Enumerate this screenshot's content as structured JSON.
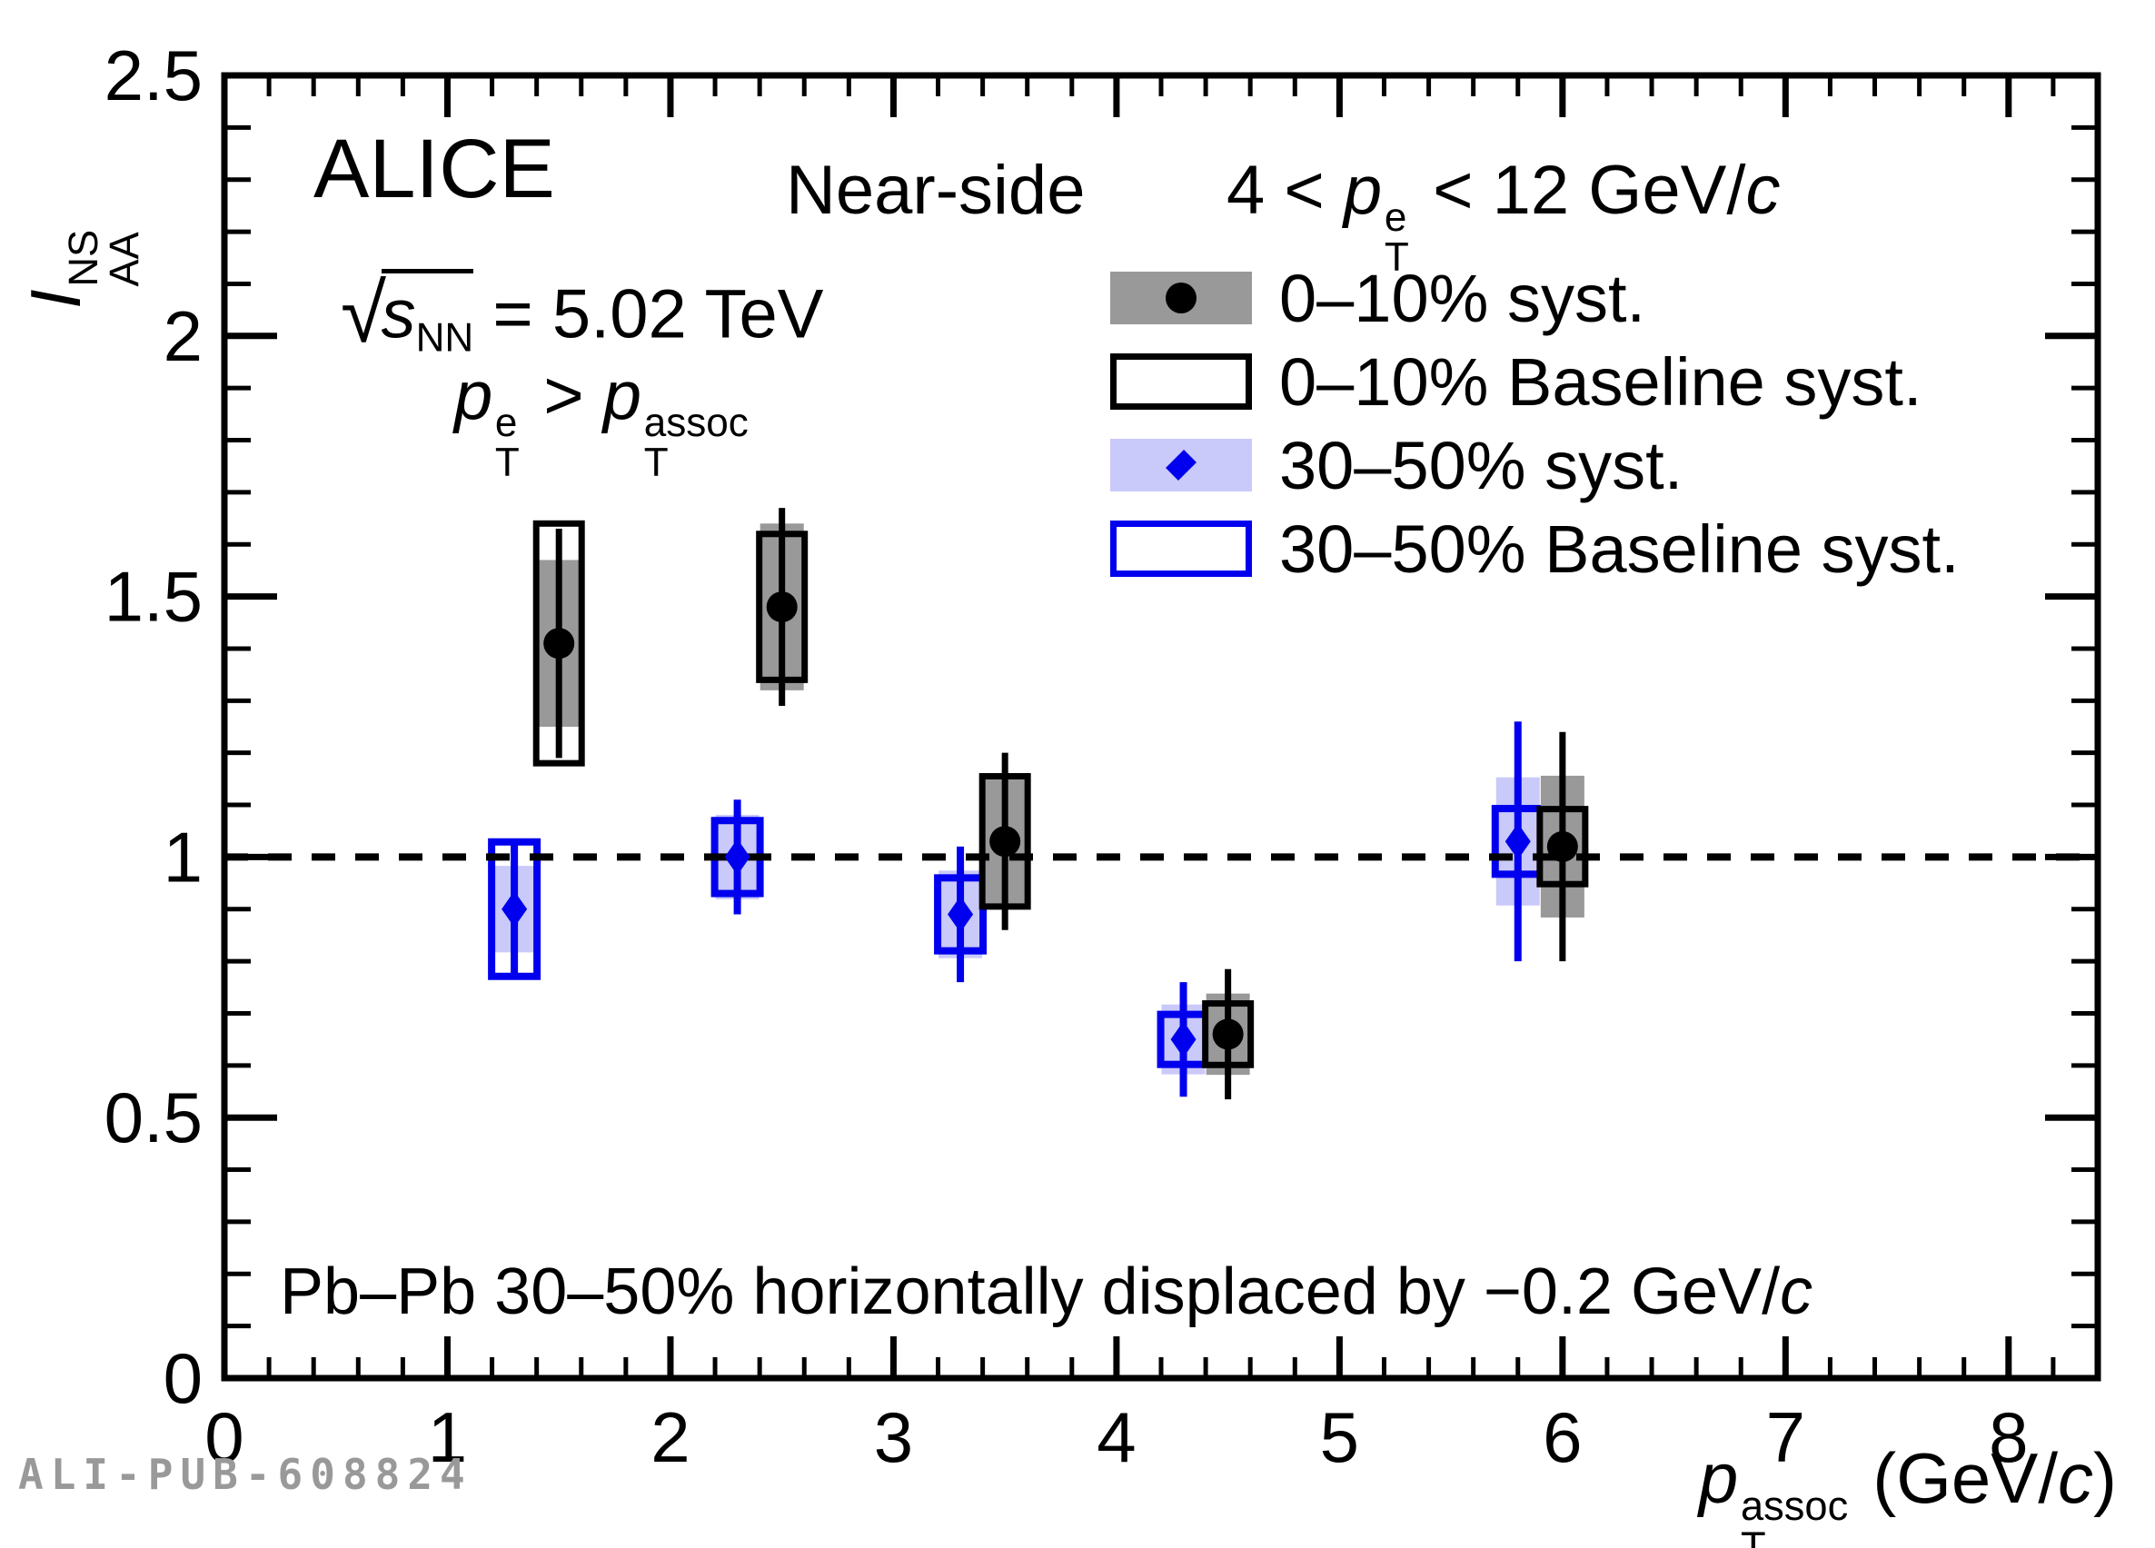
{
  "page": {
    "background": "#ffffff"
  },
  "header": {
    "experiment": "ALICE",
    "region_label": "Near-side",
    "trigger_range": {
      "lead": "4 <  ",
      "p": "p",
      "sup": "e",
      "sub": "T",
      "tail": " < 12 GeV/",
      "c": "c"
    },
    "energy": {
      "radical": "√",
      "s": "s",
      "sub": "NN",
      "tail": " = 5.02 TeV"
    },
    "ordering": {
      "p1": "p",
      "sup1": "e",
      "sub1": "T",
      "rel": " > ",
      "p2": "p",
      "sup2": "assoc",
      "sub2": "T"
    }
  },
  "legend": {
    "items": [
      {
        "label": "0–10% syst.",
        "marker": "circle",
        "marker_color": "#000000",
        "fill": "#999999",
        "border": "none"
      },
      {
        "label": "0–10% Baseline syst.",
        "marker": "none",
        "marker_color": "",
        "fill": "transparent",
        "border": "#000000"
      },
      {
        "label": "30–50% syst.",
        "marker": "diamond",
        "marker_color": "#0000ee",
        "fill": "#c9c9fa",
        "border": "none"
      },
      {
        "label": "30–50% Baseline syst.",
        "marker": "none",
        "marker_color": "",
        "fill": "transparent",
        "border": "#0000ee"
      }
    ]
  },
  "footnote": {
    "main": "Pb–Pb 30–50% horizontally displaced by −0.2 GeV/",
    "c": "c"
  },
  "watermark": "ALI-PUB-608824",
  "axis_titles": {
    "x": {
      "p": "p",
      "sup": "assoc",
      "sub": "T",
      "unit_open": " (GeV/",
      "c": "c",
      "unit_close": ")"
    },
    "y": {
      "symbol": "I",
      "sup": "NS",
      "sub": "AA"
    }
  },
  "chart_data": {
    "type": "scatter",
    "title": "ALICE Near-side I_AA^NS, Pb–Pb, sqrt(s_NN) = 5.02 TeV, 4 < p_T^e < 12 GeV/c",
    "xlabel": "p_T^assoc (GeV/c)",
    "ylabel": "I_AA^NS",
    "x_range": [
      0,
      8.4
    ],
    "y_range": [
      0,
      2.5
    ],
    "x_major_ticks": [
      0,
      1,
      2,
      3,
      4,
      5,
      6,
      7,
      8
    ],
    "x_tick_labels": [
      "0",
      "1",
      "2",
      "3",
      "4",
      "5",
      "6",
      "7",
      "8"
    ],
    "x_minor_step": 0.2,
    "y_major_ticks": [
      0,
      0.5,
      1,
      1.5,
      2,
      2.5
    ],
    "y_tick_labels": [
      "0",
      "0.5",
      "1",
      "1.5",
      "2",
      "2.5"
    ],
    "y_minor_step": 0.1,
    "grid": false,
    "baseline_y": 1.0,
    "legend_position": "top-right",
    "series": [
      {
        "name": "0-10%",
        "marker": "circle",
        "color": "#000000",
        "syst_fill": "#999999",
        "points": [
          {
            "x": 1.5,
            "y": 1.41,
            "stat": 0.22,
            "syst": 0.16,
            "baseline_syst": 0.23
          },
          {
            "x": 2.5,
            "y": 1.48,
            "stat": 0.19,
            "syst": 0.16,
            "baseline_syst": 0.14
          },
          {
            "x": 3.5,
            "y": 1.03,
            "stat": 0.17,
            "syst": 0.12,
            "baseline_syst": 0.125
          },
          {
            "x": 4.5,
            "y": 0.66,
            "stat": 0.125,
            "syst": 0.078,
            "baseline_syst": 0.059
          },
          {
            "x": 6.0,
            "y": 1.02,
            "stat": 0.22,
            "syst": 0.136,
            "baseline_syst": 0.072
          }
        ]
      },
      {
        "name": "30-50%",
        "marker": "diamond",
        "color": "#0000ee",
        "syst_fill": "#c9c9fa",
        "x_displacement": -0.2,
        "points": [
          {
            "x": 1.3,
            "y": 0.9,
            "stat": 0.135,
            "syst": 0.083,
            "baseline_syst": 0.129
          },
          {
            "x": 2.3,
            "y": 1.0,
            "stat": 0.11,
            "syst": 0.081,
            "baseline_syst": 0.07
          },
          {
            "x": 3.3,
            "y": 0.89,
            "stat": 0.13,
            "syst": 0.084,
            "baseline_syst": 0.07
          },
          {
            "x": 4.3,
            "y": 0.65,
            "stat": 0.11,
            "syst": 0.067,
            "baseline_syst": 0.048
          },
          {
            "x": 5.8,
            "y": 1.03,
            "stat": 0.23,
            "syst": 0.123,
            "baseline_syst": 0.063
          }
        ]
      }
    ]
  }
}
